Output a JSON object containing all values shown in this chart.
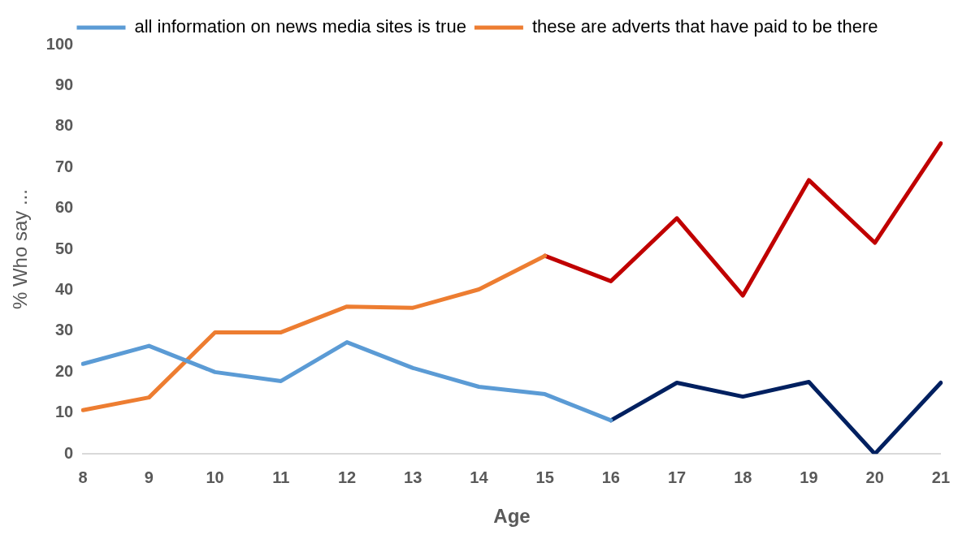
{
  "chart_data": {
    "type": "line",
    "xlabel": "Age",
    "ylabel": "% Who say ...",
    "categories": [
      "8",
      "9",
      "10",
      "11",
      "12",
      "13",
      "14",
      "15",
      "16",
      "17",
      "18",
      "19",
      "20",
      "21"
    ],
    "series": [
      {
        "name": "all information on news media sites is true",
        "color": "#5b9bd5",
        "values": [
          22,
          26.4,
          20,
          17.8,
          27.3,
          21,
          16.4,
          14.6,
          8.2,
          null,
          null,
          null,
          null,
          null
        ]
      },
      {
        "name": "these are adverts that have paid to be there",
        "color": "#ed7d31",
        "values": [
          10.7,
          13.8,
          29.7,
          29.7,
          36,
          35.7,
          40.2,
          48.4,
          null,
          null,
          null,
          null,
          null,
          null
        ]
      },
      {
        "color": "#002060",
        "values": [
          null,
          null,
          null,
          null,
          null,
          null,
          null,
          null,
          8.2,
          17.4,
          14,
          17.6,
          0,
          17.4
        ]
      },
      {
        "color": "#c00000",
        "values": [
          null,
          null,
          null,
          null,
          null,
          null,
          null,
          48.4,
          42.2,
          57.6,
          38.7,
          66.9,
          51.6,
          75.9
        ]
      }
    ],
    "ylim": [
      0,
      100
    ],
    "yticks": [
      0,
      10,
      20,
      30,
      40,
      50,
      60,
      70,
      80,
      90,
      100
    ],
    "grid": false,
    "legend": "top",
    "marker": "none",
    "line_style": "solid"
  }
}
